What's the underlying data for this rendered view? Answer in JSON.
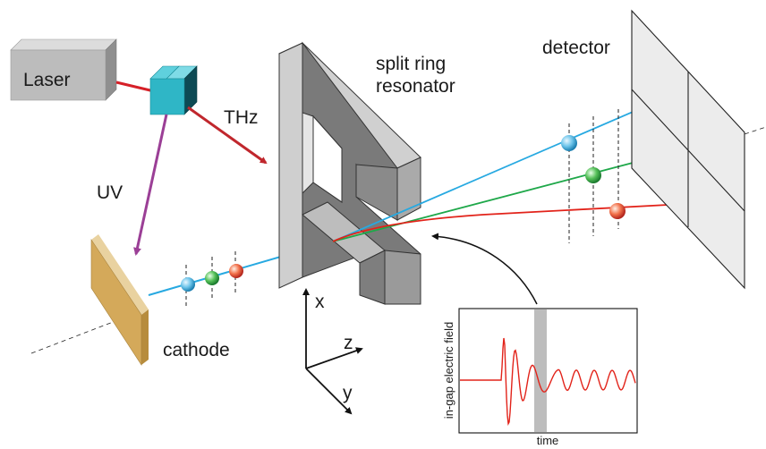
{
  "labels": {
    "laser": "Laser",
    "thz": "THz",
    "uv": "UV",
    "split_ring_line1": "split ring",
    "split_ring_line2": "resonator",
    "detector": "detector",
    "cathode": "cathode",
    "axis_x": "x",
    "axis_y": "y",
    "axis_z": "z",
    "inset_ylabel": "in-gap electric field",
    "inset_xlabel": "time"
  },
  "colors": {
    "laser_beam": "#d62028",
    "thz_arrow": "#c0272d",
    "uv_arrow": "#9b3f96",
    "crystal_front": "#2fb6c6",
    "cathode": "#d4a95a",
    "resonator": "#8e8e8e",
    "detector": "#ededed",
    "electron_blue": "#27a9e1",
    "electron_green": "#1fa84a",
    "electron_red": "#e2231a",
    "inset_trace": "#e2231a",
    "inset_gate": "#bdbdbd"
  }
}
